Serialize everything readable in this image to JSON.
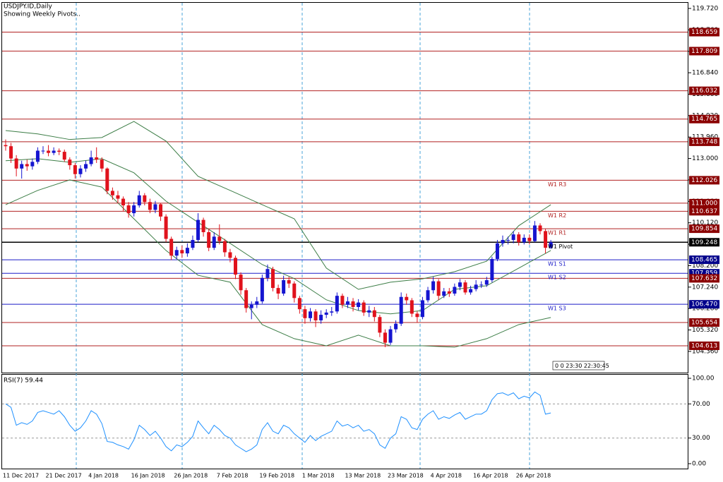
{
  "chart_data": [
    {
      "type": "candlestick",
      "title": "USDJPY.ID,Daily",
      "subtitle": "Showing Weekly Pivots..",
      "note": "0 0 23:30 22:30:45",
      "categories": [
        "11 Dec 2017",
        null,
        null,
        null,
        null,
        null,
        null,
        null,
        "21 Dec 2017",
        null,
        null,
        null,
        null,
        null,
        null,
        null,
        "4 Jan 2018",
        null,
        null,
        null,
        null,
        null,
        null,
        null,
        "16 Jan 2018",
        null,
        null,
        null,
        null,
        null,
        null,
        null,
        "26 Jan 2018",
        null,
        null,
        null,
        null,
        null,
        null,
        null,
        "7 Feb 2018",
        null,
        null,
        null,
        null,
        null,
        null,
        null,
        "19 Feb 2018",
        null,
        null,
        null,
        null,
        null,
        null,
        null,
        "1 Mar 2018",
        null,
        null,
        null,
        null,
        null,
        null,
        null,
        "13 Mar 2018",
        null,
        null,
        null,
        null,
        null,
        null,
        null,
        "23 Mar 2018",
        null,
        null,
        null,
        null,
        null,
        null,
        null,
        "4 Apr 2018",
        null,
        null,
        null,
        null,
        null,
        null,
        null,
        "16 Apr 2018",
        null,
        null,
        null,
        null,
        null,
        null,
        null,
        "26 Apr 2018",
        null,
        null,
        null,
        null,
        null,
        null
      ],
      "open": [
        113.6,
        113.55,
        113.0,
        112.55,
        112.75,
        112.65,
        112.85,
        113.35,
        113.35,
        113.25,
        113.35,
        113.3,
        112.95,
        112.7,
        112.3,
        112.55,
        112.75,
        113.05,
        112.95,
        112.55,
        111.55,
        111.35,
        111.2,
        110.9,
        110.55,
        110.9,
        111.35,
        111.05,
        110.7,
        110.95,
        110.4,
        109.4,
        108.65,
        108.9,
        108.75,
        109.0,
        109.35,
        110.25,
        109.7,
        109.0,
        109.5,
        109.3,
        108.8,
        108.55,
        107.8,
        107.1,
        106.3,
        106.45,
        106.6,
        107.65,
        108.05,
        107.2,
        106.95,
        107.55,
        107.4,
        106.75,
        106.25,
        105.85,
        106.15,
        105.75,
        106.0,
        106.1,
        106.15,
        106.85,
        106.45,
        106.6,
        106.35,
        106.55,
        106.1,
        106.2,
        105.9,
        105.2,
        104.75,
        105.35,
        105.6,
        106.8,
        106.65,
        106.05,
        105.9,
        106.65,
        107.1,
        107.5,
        106.85,
        107.05,
        106.95,
        107.25,
        107.45,
        107.0,
        107.15,
        107.35,
        107.35,
        107.55,
        108.5,
        109.2,
        109.35,
        109.35,
        109.6,
        109.25,
        109.45,
        109.3,
        110.0,
        109.75,
        109.0
      ],
      "high": [
        113.85,
        113.7,
        113.15,
        112.9,
        112.95,
        113.0,
        113.5,
        113.55,
        113.6,
        113.5,
        113.45,
        113.4,
        113.05,
        112.8,
        112.7,
        112.9,
        113.35,
        113.5,
        113.05,
        112.6,
        111.7,
        111.55,
        111.3,
        111.05,
        111.05,
        111.55,
        111.45,
        111.2,
        111.1,
        111.0,
        110.5,
        109.5,
        109.05,
        109.1,
        109.2,
        109.55,
        110.55,
        110.35,
        109.85,
        109.7,
        110.05,
        109.4,
        108.95,
        108.65,
        107.9,
        107.2,
        106.6,
        106.8,
        107.8,
        108.25,
        108.15,
        107.35,
        107.75,
        107.7,
        107.5,
        106.85,
        106.4,
        106.3,
        106.25,
        106.2,
        106.25,
        106.35,
        107.0,
        106.95,
        106.8,
        106.75,
        106.7,
        106.65,
        106.4,
        106.35,
        106.0,
        105.35,
        105.5,
        105.75,
        107.0,
        106.95,
        106.75,
        106.15,
        106.8,
        107.25,
        107.7,
        107.6,
        107.2,
        107.2,
        107.4,
        107.6,
        107.55,
        107.3,
        107.55,
        107.5,
        107.7,
        108.6,
        109.35,
        109.55,
        109.5,
        109.75,
        109.7,
        109.6,
        109.6,
        110.2,
        110.1,
        109.85,
        109.35
      ],
      "low": [
        113.35,
        112.8,
        112.2,
        112.1,
        112.45,
        112.5,
        112.75,
        113.2,
        113.1,
        113.15,
        113.15,
        112.85,
        112.5,
        112.1,
        112.15,
        112.4,
        112.65,
        112.8,
        112.4,
        111.4,
        111.15,
        111.0,
        110.65,
        110.35,
        110.4,
        110.8,
        110.9,
        110.55,
        110.55,
        110.2,
        109.25,
        108.45,
        108.5,
        108.55,
        108.6,
        108.9,
        109.25,
        109.5,
        108.85,
        108.9,
        109.15,
        108.6,
        108.35,
        107.6,
        106.9,
        106.1,
        105.8,
        106.3,
        106.5,
        107.5,
        107.05,
        106.7,
        106.85,
        107.2,
        106.55,
        106.05,
        105.6,
        105.7,
        105.45,
        105.6,
        105.85,
        105.95,
        106.05,
        106.3,
        106.3,
        106.15,
        106.2,
        105.95,
        105.9,
        105.7,
        105.0,
        104.55,
        104.65,
        105.2,
        105.5,
        106.45,
        105.9,
        105.65,
        105.8,
        106.55,
        106.95,
        106.65,
        106.75,
        106.8,
        106.85,
        107.1,
        106.9,
        106.9,
        107.05,
        107.2,
        107.25,
        107.45,
        108.4,
        109.05,
        109.15,
        109.2,
        109.1,
        109.15,
        109.15,
        109.25,
        109.6,
        108.75,
        108.95
      ],
      "close": [
        113.55,
        113.0,
        112.55,
        112.75,
        112.65,
        112.85,
        113.35,
        113.35,
        113.25,
        113.35,
        113.3,
        112.95,
        112.7,
        112.3,
        112.55,
        112.75,
        113.05,
        112.95,
        112.55,
        111.55,
        111.35,
        111.2,
        110.9,
        110.55,
        110.9,
        111.35,
        111.05,
        110.7,
        110.95,
        110.4,
        109.4,
        108.65,
        108.9,
        108.75,
        109.0,
        109.35,
        110.25,
        109.7,
        109.0,
        109.5,
        109.3,
        108.8,
        108.55,
        107.8,
        107.1,
        106.3,
        106.45,
        106.6,
        107.65,
        108.05,
        107.2,
        106.95,
        107.55,
        107.4,
        106.75,
        106.25,
        105.85,
        106.15,
        105.75,
        106.0,
        106.1,
        106.15,
        106.85,
        106.45,
        106.6,
        106.35,
        106.55,
        106.1,
        106.2,
        105.9,
        105.2,
        104.75,
        105.35,
        105.6,
        106.8,
        106.65,
        106.05,
        105.9,
        106.65,
        107.1,
        107.5,
        106.85,
        107.05,
        106.95,
        107.25,
        107.45,
        107.0,
        107.15,
        107.35,
        107.35,
        107.55,
        108.5,
        109.2,
        109.35,
        109.35,
        109.6,
        109.25,
        109.45,
        109.3,
        110.0,
        109.75,
        109.0,
        109.25
      ],
      "up_color": "#1515d0",
      "down_color": "#e0121c",
      "bands": {
        "color": "#3c7d46",
        "x": [
          0,
          6,
          12,
          18,
          24,
          30,
          36,
          42,
          48,
          54,
          60,
          66,
          72,
          78,
          84,
          90,
          96,
          102
        ],
        "upper": [
          114.25,
          114.1,
          113.85,
          113.94,
          114.66,
          113.78,
          112.2,
          111.57,
          110.93,
          110.3,
          108.09,
          107.14,
          107.46,
          107.61,
          107.93,
          108.4,
          109.99,
          110.93
        ],
        "middle": [
          112.9,
          112.99,
          112.83,
          112.99,
          112.36,
          111.09,
          110.14,
          109.2,
          108.25,
          107.62,
          106.67,
          106.19,
          106.04,
          106.19,
          107.14,
          107.3,
          108.09,
          108.88
        ],
        "lower": [
          110.93,
          111.57,
          112.04,
          111.72,
          110.3,
          108.88,
          107.77,
          107.46,
          105.56,
          104.93,
          104.61,
          105.09,
          104.61,
          104.61,
          104.55,
          104.93,
          105.56,
          105.88
        ]
      },
      "levels": [
        {
          "value": 118.659,
          "color": "#b22222"
        },
        {
          "value": 117.809,
          "color": "#b22222"
        },
        {
          "value": 116.032,
          "color": "#b22222"
        },
        {
          "value": 114.765,
          "color": "#b22222"
        },
        {
          "value": 113.748,
          "color": "#b22222"
        },
        {
          "value": 112.026,
          "color": "#b22222",
          "name": "W1 R3"
        },
        {
          "value": 111,
          "label": "111.000",
          "color": "#b22222"
        },
        {
          "value": 110.637,
          "color": "#b22222",
          "name": "W1 R2"
        },
        {
          "value": 109.854,
          "color": "#b22222",
          "name": "W1 R1"
        },
        {
          "value": 109.248,
          "color": "#000000",
          "name": "W1 Pivot"
        },
        {
          "value": 108.465,
          "color": "#1c1cc8",
          "name": "W1 S1"
        },
        {
          "value": 107.859,
          "color": "#1c1cc8",
          "name": "W1 S2"
        },
        {
          "value": 107.632,
          "color": "#b22222"
        },
        {
          "value": 106.47,
          "label": "106.470",
          "color": "#1c1cc8",
          "name": "W1 S3"
        },
        {
          "value": 105.654,
          "color": "#b22222"
        },
        {
          "value": 104.613,
          "color": "#b22222"
        }
      ],
      "ylim": [
        103.41,
        119.94
      ],
      "yticks": [
        {
          "value": 119.72,
          "label": "119.720"
        },
        {
          "value": 118.76,
          "label": "118.760"
        },
        {
          "value": 117.8,
          "label": "117.800"
        },
        {
          "value": 116.84,
          "label": "116.840"
        },
        {
          "value": 115.88,
          "label": "115.880"
        },
        {
          "value": 114.92,
          "label": "114.920"
        },
        {
          "value": 113.96,
          "label": "113.960"
        },
        {
          "value": 113,
          "label": "113.000"
        },
        {
          "value": 112.04,
          "label": "112.040"
        },
        {
          "value": 111.08,
          "label": "111.080"
        },
        {
          "value": 110.12,
          "label": "110.120"
        },
        {
          "value": 109.16,
          "label": "109.160"
        },
        {
          "value": 108.2,
          "label": "108.200"
        },
        {
          "value": 107.24,
          "label": "107.240"
        },
        {
          "value": 106.28,
          "label": "106.280"
        },
        {
          "value": 105.32,
          "label": "105.320"
        },
        {
          "value": 104.36,
          "label": "104.360"
        }
      ]
    },
    {
      "type": "line",
      "title": "RSI(7) 59.44",
      "color": "#1e90ff",
      "values": [
        70,
        66,
        45,
        48,
        46,
        50,
        60,
        62,
        60,
        58,
        62,
        55,
        45,
        38,
        42,
        50,
        62,
        58,
        47,
        26,
        25,
        22,
        20,
        17,
        28,
        45,
        40,
        33,
        38,
        30,
        20,
        15,
        22,
        20,
        25,
        32,
        50,
        42,
        35,
        45,
        40,
        33,
        30,
        22,
        18,
        14,
        17,
        22,
        40,
        48,
        38,
        35,
        45,
        42,
        35,
        30,
        25,
        33,
        27,
        32,
        35,
        38,
        50,
        44,
        46,
        42,
        45,
        38,
        40,
        35,
        22,
        18,
        30,
        35,
        55,
        52,
        42,
        40,
        52,
        58,
        62,
        52,
        55,
        53,
        57,
        60,
        52,
        55,
        58,
        58,
        62,
        75,
        82,
        83,
        80,
        83,
        76,
        79,
        77,
        84,
        80,
        58,
        59.44
      ],
      "ylim": [
        -6.6,
        105
      ],
      "yticks": [
        {
          "value": 100,
          "label": "100.00"
        },
        {
          "value": 70,
          "label": "70.00"
        },
        {
          "value": 30,
          "label": "30.00"
        },
        {
          "value": 0,
          "label": "0.00"
        }
      ]
    }
  ]
}
